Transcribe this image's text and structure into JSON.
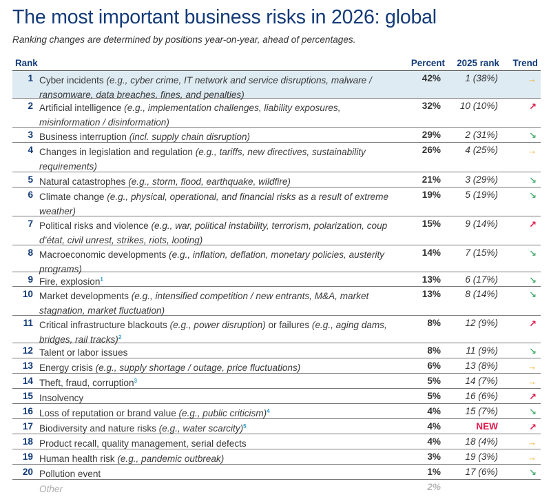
{
  "title": "The most important business risks in 2026: global",
  "subtitle": "Ranking changes are determined by positions year-on-year, ahead of percentages.",
  "columns": {
    "rank": "Rank",
    "percent": "Percent",
    "prev_rank": "2025 rank",
    "trend": "Trend"
  },
  "trend_icons": {
    "same": {
      "glyph": "→",
      "color": "#f3a91b",
      "name": "arrow-right-icon"
    },
    "up": {
      "glyph": "↗",
      "color": "#e0194b",
      "name": "arrow-up-right-icon"
    },
    "down": {
      "glyph": "↘",
      "color": "#4caf73",
      "name": "arrow-down-right-icon"
    }
  },
  "rows": [
    {
      "rank": "1",
      "main": "Cyber incidents",
      "detail": "(e.g., cyber crime, IT network and service disruptions, malware / ransomware, data breaches, fines, and penalties)",
      "footnote": "",
      "percent": "42%",
      "prev": "1 (38%)",
      "trend": "same",
      "lines": 2,
      "highlight": true
    },
    {
      "rank": "2",
      "main": "Artificial intelligence",
      "detail": "(e.g., implementation challenges, liability exposures, misinformation / disinformation)",
      "footnote": "",
      "percent": "32%",
      "prev": "10 (10%)",
      "trend": "up",
      "lines": 2
    },
    {
      "rank": "3",
      "main": "Business interruption",
      "detail": "(incl. supply chain disruption)",
      "footnote": "",
      "percent": "29%",
      "prev": "2 (31%)",
      "trend": "down",
      "lines": 1
    },
    {
      "rank": "4",
      "main": "Changes in legislation and regulation",
      "detail": "(e.g., tariffs, new directives, sustainability requirements)",
      "footnote": "",
      "percent": "26%",
      "prev": "4 (25%)",
      "trend": "same",
      "lines": 2
    },
    {
      "rank": "5",
      "main": "Natural catastrophes",
      "detail": "(e.g., storm, flood, earthquake, wildfire)",
      "footnote": "",
      "percent": "21%",
      "prev": "3 (29%)",
      "trend": "down",
      "lines": 1
    },
    {
      "rank": "6",
      "main": "Climate change",
      "detail": "(e.g., physical, operational, and financial risks as a result of extreme weather)",
      "footnote": "",
      "percent": "19%",
      "prev": "5 (19%)",
      "trend": "down",
      "lines": 2
    },
    {
      "rank": "7",
      "main": "Political risks and violence",
      "detail": "(e.g., war, political instability, terrorism, polarization, coup d’état, civil unrest, strikes, riots, looting)",
      "footnote": "",
      "percent": "15%",
      "prev": "9 (14%)",
      "trend": "up",
      "lines": 2
    },
    {
      "rank": "8",
      "main": "Macroeconomic developments",
      "detail": "(e.g., inflation, deflation, monetary policies, austerity programs)",
      "footnote": "",
      "percent": "14%",
      "prev": "7 (15%)",
      "trend": "down",
      "lines": 2
    },
    {
      "rank": "9",
      "main": "Fire, explosion",
      "detail": "",
      "footnote": "1",
      "percent": "13%",
      "prev": "6 (17%)",
      "trend": "down",
      "lines": 1
    },
    {
      "rank": "10",
      "main": "Market developments",
      "detail": "(e.g., intensified competition / new entrants, M&A, market stagnation, market fluctuation)",
      "footnote": "",
      "percent": "13%",
      "prev": "8 (14%)",
      "trend": "down",
      "lines": 2
    },
    {
      "rank": "11",
      "main": "Critical infrastructure blackouts",
      "detail": "(e.g., power disruption)",
      "main2": " or failures ",
      "detail2": "(e.g., aging dams, bridges, rail tracks)",
      "footnote": "2",
      "percent": "8%",
      "prev": "12 (9%)",
      "trend": "up",
      "lines": 2
    },
    {
      "rank": "12",
      "main": "Talent or labor issues",
      "detail": "",
      "footnote": "",
      "percent": "8%",
      "prev": "11 (9%)",
      "trend": "down",
      "lines": 1
    },
    {
      "rank": "13",
      "main": "Energy crisis",
      "detail": "(e.g., supply shortage / outage, price fluctuations)",
      "footnote": "",
      "percent": "6%",
      "prev": "13 (8%)",
      "trend": "same",
      "lines": 1
    },
    {
      "rank": "14",
      "main": "Theft, fraud, corruption",
      "detail": "",
      "footnote": "3",
      "percent": "5%",
      "prev": "14 (7%)",
      "trend": "same",
      "lines": 1
    },
    {
      "rank": "15",
      "main": "Insolvency",
      "detail": "",
      "footnote": "",
      "percent": "5%",
      "prev": "16 (6%)",
      "trend": "up",
      "lines": 1
    },
    {
      "rank": "16",
      "main": "Loss of reputation or brand value",
      "detail": "(e.g., public criticism)",
      "footnote": "4",
      "percent": "4%",
      "prev": "15 (7%)",
      "trend": "down",
      "lines": 1
    },
    {
      "rank": "17",
      "main": "Biodiversity and nature risks",
      "detail": "(e.g., water scarcity)",
      "footnote": "5",
      "percent": "4%",
      "prev": "NEW",
      "prev_is_new": true,
      "trend": "up",
      "lines": 1
    },
    {
      "rank": "18",
      "main": "Product recall, quality management, serial defects",
      "detail": "",
      "footnote": "",
      "percent": "4%",
      "prev": "18 (4%)",
      "trend": "same",
      "lines": 1
    },
    {
      "rank": "19",
      "main": "Human health risk",
      "detail": "(e.g., pandemic outbreak)",
      "footnote": "",
      "percent": "3%",
      "prev": "19 (3%)",
      "trend": "same",
      "lines": 1
    },
    {
      "rank": "20",
      "main": "Pollution event",
      "detail": "",
      "footnote": "",
      "percent": "1%",
      "prev": "17 (6%)",
      "trend": "down",
      "lines": 1
    }
  ],
  "other": {
    "label": "Other",
    "percent": "2%"
  }
}
